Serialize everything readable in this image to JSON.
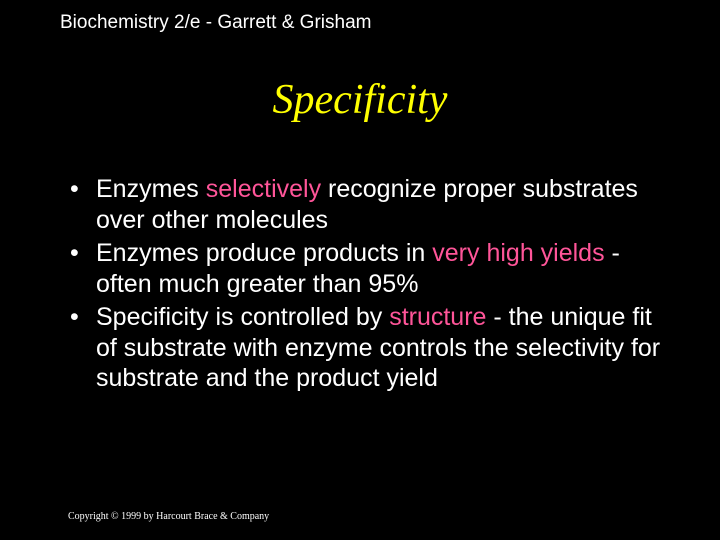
{
  "header": {
    "text": "Biochemistry 2/e - Garrett & Grisham",
    "color": "#ffffff",
    "fontsize": 19
  },
  "title": {
    "text": "Specificity",
    "color": "#ffff00",
    "fontsize": 42,
    "font_style": "italic"
  },
  "bullets": [
    {
      "segments": [
        {
          "text": "Enzymes ",
          "highlight": false
        },
        {
          "text": "selectively",
          "highlight": true
        },
        {
          "text": " recognize proper substrates over other molecules",
          "highlight": false
        }
      ]
    },
    {
      "segments": [
        {
          "text": "Enzymes produce products in ",
          "highlight": false
        },
        {
          "text": "very high yields",
          "highlight": true
        },
        {
          "text": " - often much greater than 95%",
          "highlight": false
        }
      ]
    },
    {
      "segments": [
        {
          "text": "Specificity is controlled by ",
          "highlight": false
        },
        {
          "text": "structure",
          "highlight": true
        },
        {
          "text": " - the unique fit of substrate with enzyme controls the selectivity for substrate and the product yield",
          "highlight": false
        }
      ]
    }
  ],
  "footer": {
    "text": "Copyright © 1999 by Harcourt Brace & Company",
    "color": "#ffffff",
    "fontsize": 10
  },
  "colors": {
    "background": "#000000",
    "text": "#ffffff",
    "title": "#ffff00",
    "highlight": "#ff5599"
  }
}
